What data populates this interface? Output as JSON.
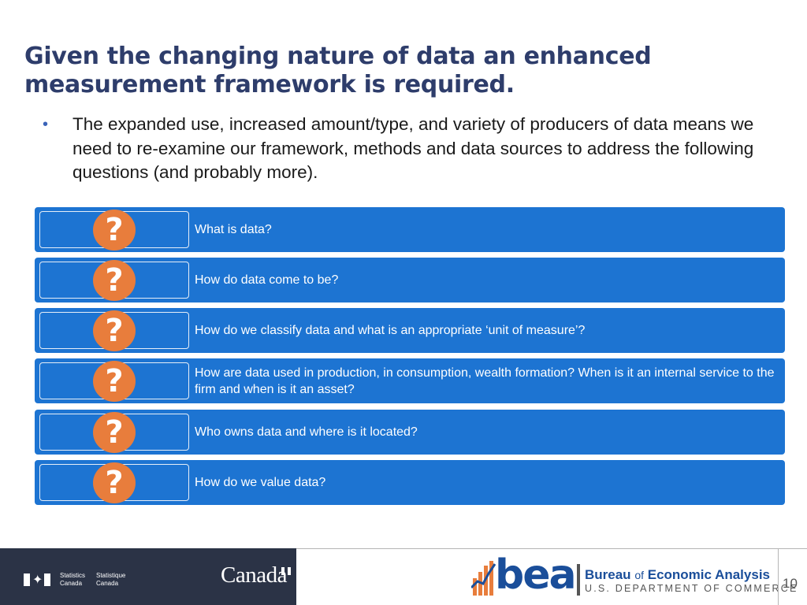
{
  "slide": {
    "title_line1": "Given the changing nature of data an enhanced",
    "title_line2": "measurement framework is required.",
    "bullet_symbol": "•",
    "bullet_text": "The expanded use, increased amount/type, and variety of producers of data means we need to re-examine our framework, methods and data sources to address the following questions (and probably more).",
    "question_symbol": "?",
    "questions": [
      "What is data?",
      "How do data come to be?",
      "How do we classify data and what is an appropriate ‘unit of measure’?",
      "How are data used in production, in consumption, wealth formation?  When is it an internal service to the firm and when is it an asset?",
      "Who owns data and where is it located?",
      "How do we value data?"
    ]
  },
  "footer": {
    "statcan_en_line1": "Statistics",
    "statcan_en_line2": "Canada",
    "statcan_fr_line1": "Statistique",
    "statcan_fr_line2": "Canada",
    "canada_wordmark": "Canada",
    "bea_wordmark": "bea",
    "bea_name_part1": "Bureau",
    "bea_name_of": "of",
    "bea_name_part2": "Economic Analysis",
    "bea_department": "U.S. DEPARTMENT OF COMMERCE",
    "page_number": "10"
  },
  "colors": {
    "title": "#2e3d6b",
    "row_fill": "#1d74d2",
    "question_badge": "#e87d3c",
    "footer_dark": "#2b3346",
    "bea_blue": "#1a4e9a"
  }
}
